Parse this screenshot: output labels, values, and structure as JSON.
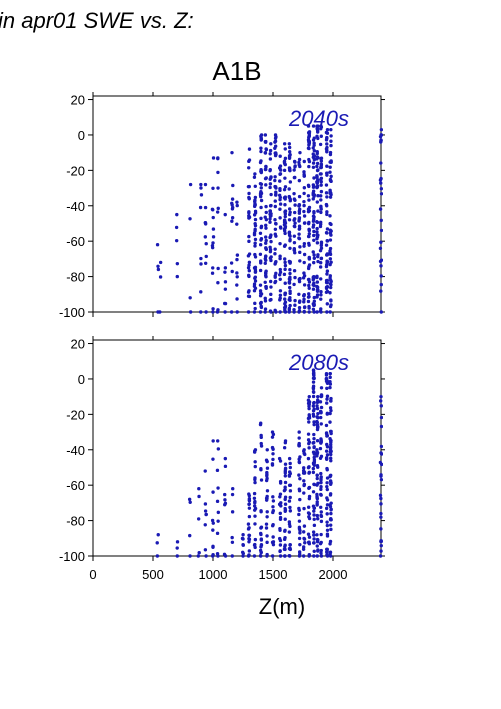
{
  "figure_title": "in apr01 SWE vs. Z:",
  "colors": {
    "marker": "#1a1ab4",
    "axis": "#000000"
  },
  "chart_data": [
    {
      "type": "scatter",
      "title": "A1B",
      "annotation": "2040s",
      "xlabel": "",
      "ylabel": "",
      "xlim": [
        0,
        2400
      ],
      "ylim": [
        -100,
        22
      ],
      "yticks": [
        -100,
        -80,
        -60,
        -40,
        -20,
        0,
        20
      ],
      "xticks": [
        0,
        500,
        1000,
        1500,
        2000
      ],
      "show_x_tick_labels": false,
      "grid": false,
      "stripes": [
        {
          "x": 540,
          "ymin": -100,
          "ymax": -62,
          "n": 4
        },
        {
          "x": 560,
          "ymin": -100,
          "ymax": -72,
          "n": 3
        },
        {
          "x": 700,
          "ymin": -80,
          "ymax": -45,
          "n": 5
        },
        {
          "x": 810,
          "ymin": -100,
          "ymax": -28,
          "n": 4
        },
        {
          "x": 900,
          "ymin": -100,
          "ymax": -28,
          "n": 8
        },
        {
          "x": 940,
          "ymin": -100,
          "ymax": -28,
          "n": 10
        },
        {
          "x": 1000,
          "ymin": -100,
          "ymax": -13,
          "n": 14
        },
        {
          "x": 1040,
          "ymin": -100,
          "ymax": -13,
          "n": 10
        },
        {
          "x": 1100,
          "ymin": -100,
          "ymax": -45,
          "n": 8
        },
        {
          "x": 1160,
          "ymin": -100,
          "ymax": -10,
          "n": 12
        },
        {
          "x": 1200,
          "ymin": -100,
          "ymax": -38,
          "n": 10
        },
        {
          "x": 1300,
          "ymin": -100,
          "ymax": -8,
          "n": 30
        },
        {
          "x": 1350,
          "ymin": -100,
          "ymax": -22,
          "n": 40
        },
        {
          "x": 1400,
          "ymin": -100,
          "ymax": 0,
          "n": 45
        },
        {
          "x": 1440,
          "ymin": -100,
          "ymax": 0,
          "n": 45
        },
        {
          "x": 1480,
          "ymin": -100,
          "ymax": -5,
          "n": 40
        },
        {
          "x": 1520,
          "ymin": -100,
          "ymax": 0,
          "n": 40
        },
        {
          "x": 1560,
          "ymin": -100,
          "ymax": -12,
          "n": 30
        },
        {
          "x": 1600,
          "ymin": -100,
          "ymax": -5,
          "n": 50
        },
        {
          "x": 1640,
          "ymin": -100,
          "ymax": -5,
          "n": 50
        },
        {
          "x": 1680,
          "ymin": -100,
          "ymax": -15,
          "n": 30
        },
        {
          "x": 1720,
          "ymin": -100,
          "ymax": -10,
          "n": 35
        },
        {
          "x": 1760,
          "ymin": -100,
          "ymax": -15,
          "n": 30
        },
        {
          "x": 1800,
          "ymin": -100,
          "ymax": 5,
          "n": 55
        },
        {
          "x": 1840,
          "ymin": -100,
          "ymax": 5,
          "n": 60
        },
        {
          "x": 1870,
          "ymin": -100,
          "ymax": 5,
          "n": 55
        },
        {
          "x": 1900,
          "ymin": -100,
          "ymax": 5,
          "n": 45
        },
        {
          "x": 1950,
          "ymin": -100,
          "ymax": 3,
          "n": 50
        },
        {
          "x": 1980,
          "ymin": -100,
          "ymax": 3,
          "n": 50
        },
        {
          "x": 2400,
          "ymin": -100,
          "ymax": 3,
          "n": 25
        }
      ]
    },
    {
      "type": "scatter",
      "title": "",
      "annotation": "2080s",
      "xlabel": "Z(m)",
      "ylabel": "",
      "xlim": [
        0,
        2400
      ],
      "ylim": [
        -100,
        22
      ],
      "yticks": [
        -100,
        -80,
        -60,
        -40,
        -20,
        0,
        20
      ],
      "xticks": [
        0,
        500,
        1000,
        1500,
        2000
      ],
      "show_x_tick_labels": true,
      "grid": false,
      "stripes": [
        {
          "x": 540,
          "ymin": -100,
          "ymax": -88,
          "n": 3
        },
        {
          "x": 700,
          "ymin": -100,
          "ymax": -92,
          "n": 3
        },
        {
          "x": 810,
          "ymin": -100,
          "ymax": -68,
          "n": 4
        },
        {
          "x": 880,
          "ymin": -100,
          "ymax": -62,
          "n": 5
        },
        {
          "x": 940,
          "ymin": -100,
          "ymax": -52,
          "n": 8
        },
        {
          "x": 1000,
          "ymin": -100,
          "ymax": -35,
          "n": 10
        },
        {
          "x": 1040,
          "ymin": -100,
          "ymax": -35,
          "n": 10
        },
        {
          "x": 1100,
          "ymin": -100,
          "ymax": -45,
          "n": 8
        },
        {
          "x": 1160,
          "ymin": -100,
          "ymax": -62,
          "n": 6
        },
        {
          "x": 1250,
          "ymin": -100,
          "ymax": -88,
          "n": 8
        },
        {
          "x": 1300,
          "ymin": -100,
          "ymax": -65,
          "n": 20
        },
        {
          "x": 1350,
          "ymin": -100,
          "ymax": -40,
          "n": 22
        },
        {
          "x": 1400,
          "ymin": -100,
          "ymax": -25,
          "n": 25
        },
        {
          "x": 1450,
          "ymin": -100,
          "ymax": -40,
          "n": 22
        },
        {
          "x": 1500,
          "ymin": -100,
          "ymax": -30,
          "n": 22
        },
        {
          "x": 1560,
          "ymin": -100,
          "ymax": -45,
          "n": 20
        },
        {
          "x": 1600,
          "ymin": -100,
          "ymax": -35,
          "n": 30
        },
        {
          "x": 1640,
          "ymin": -100,
          "ymax": -45,
          "n": 25
        },
        {
          "x": 1720,
          "ymin": -100,
          "ymax": -30,
          "n": 28
        },
        {
          "x": 1760,
          "ymin": -100,
          "ymax": -40,
          "n": 22
        },
        {
          "x": 1800,
          "ymin": -100,
          "ymax": -10,
          "n": 40
        },
        {
          "x": 1840,
          "ymin": -100,
          "ymax": 5,
          "n": 60
        },
        {
          "x": 1870,
          "ymin": -100,
          "ymax": -10,
          "n": 45
        },
        {
          "x": 1900,
          "ymin": -100,
          "ymax": -5,
          "n": 40
        },
        {
          "x": 1950,
          "ymin": -100,
          "ymax": 3,
          "n": 50
        },
        {
          "x": 1980,
          "ymin": -100,
          "ymax": 3,
          "n": 55
        },
        {
          "x": 2400,
          "ymin": -100,
          "ymax": -10,
          "n": 25
        }
      ]
    }
  ]
}
